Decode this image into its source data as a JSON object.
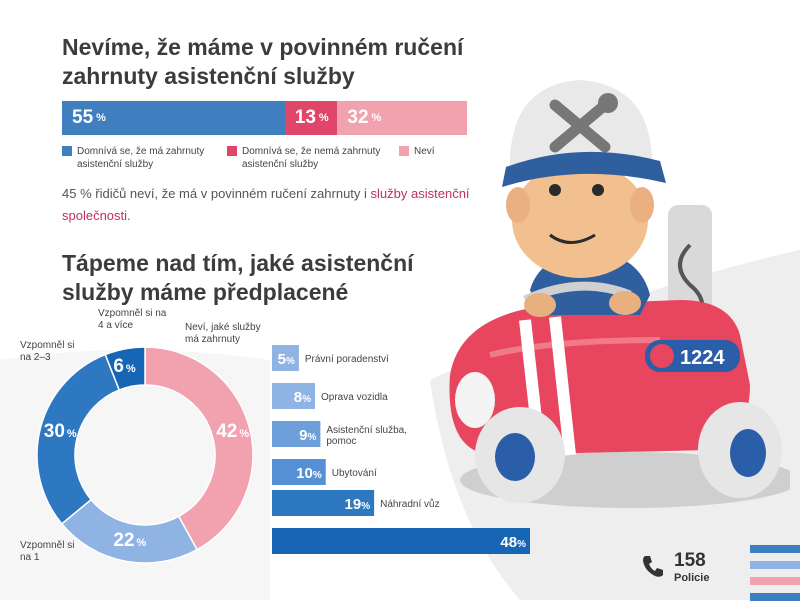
{
  "colors": {
    "blue": "#3f7fc0",
    "red": "#e0466a",
    "pink": "#f2a1ae",
    "lightblue": "#8fb3e2",
    "midblue": "#2e78c2",
    "deepblue": "#1766b5",
    "accent": "#c2305a"
  },
  "section1": {
    "title": "Nevíme, že máme v povinném ručení zahrnuty asistenční služby",
    "legend": [
      {
        "label": "Domnívá se, že má zahrnuty asistenční služby",
        "color": "#3f7fc0"
      },
      {
        "label": "Domnívá se, že nemá zahrnuty asistenční služby",
        "color": "#e0466a"
      },
      {
        "label": "Neví",
        "color": "#f2a1ae"
      }
    ],
    "note_part1": "45 % řidičů neví, že má v povinném ručení zahrnuty i ",
    "note_accent": "služby asistenční společnosti."
  },
  "section2": {
    "title": "Tápeme nad tím, jaké asistenční služby máme předplacené"
  },
  "footer": {
    "number": "158",
    "label": "Policie",
    "icon": "phone-icon"
  },
  "mascot": {
    "plate": "1224",
    "icon": "wrench-screwdriver-icon"
  },
  "pct_sign": "%",
  "chart_data": [
    {
      "type": "bar",
      "orientation": "horizontal-stacked",
      "title": "Nevíme, že máme v povinném ručení zahrnuty asistenční služby",
      "categories": [
        "Domnívá se, že má zahrnuty asistenční služby",
        "Domnívá se, že nemá zahrnuty asistenční služby",
        "Neví"
      ],
      "values": [
        55,
        13,
        32
      ],
      "colors": [
        "#3f7fc0",
        "#e0466a",
        "#f2a1ae"
      ],
      "legend": "bottom"
    },
    {
      "type": "pie",
      "donut": true,
      "title": "Tápeme nad tím, jaké asistenční služby máme předplacené",
      "categories": [
        "Neví, jaké služby má zahrnuty",
        "Vzpomněl si na 1",
        "Vzpomněl si na 2–3",
        "Vzpomněl si na 4 a více"
      ],
      "values": [
        42,
        22,
        30,
        6
      ],
      "colors": [
        "#f2a1ae",
        "#8fb3e2",
        "#2e78c2",
        "#1766b5"
      ]
    },
    {
      "type": "bar",
      "orientation": "horizontal",
      "categories": [
        "Právní poradenství",
        "Oprava vozidla",
        "Asistenční služba, pomoc",
        "Ubytování",
        "Náhradní vůz",
        ""
      ],
      "values": [
        5,
        8,
        9,
        10,
        19,
        48
      ],
      "colors": [
        "#8fb3e2",
        "#8fb3e2",
        "#6d9fda",
        "#5590d4",
        "#2e78c2",
        "#1766b5"
      ],
      "xlim": [
        0,
        48
      ]
    }
  ]
}
